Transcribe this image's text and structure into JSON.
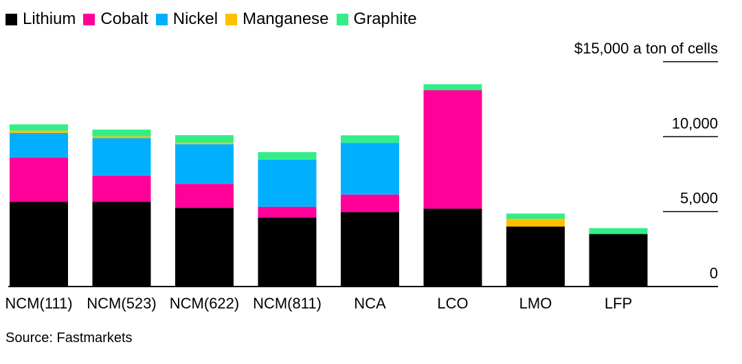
{
  "chart_data": {
    "type": "bar",
    "stacked": true,
    "title": "",
    "ylabel": "$15,000 a ton of cells",
    "xlabel": "",
    "ylim": [
      0,
      15000
    ],
    "yticks": [
      {
        "value": 0,
        "label": "0"
      },
      {
        "value": 5000,
        "label": "5,000"
      },
      {
        "value": 10000,
        "label": "10,000"
      },
      {
        "value": 15000,
        "label": "$15,000 a ton of cells"
      }
    ],
    "categories": [
      "NCM(111)",
      "NCM(523)",
      "NCM(622)",
      "NCM(811)",
      "NCA",
      "LCO",
      "LMO",
      "LFP"
    ],
    "series": [
      {
        "name": "Lithium",
        "color": "#000000",
        "values": [
          5650,
          5650,
          5250,
          4600,
          4970,
          5200,
          4000,
          3500
        ]
      },
      {
        "name": "Cobalt",
        "color": "#ff0099",
        "values": [
          2950,
          1750,
          1600,
          720,
          1170,
          7900,
          0,
          0
        ]
      },
      {
        "name": "Nickel",
        "color": "#00b0ff",
        "values": [
          1650,
          2500,
          2650,
          3150,
          3450,
          0,
          0,
          0
        ]
      },
      {
        "name": "Manganese",
        "color": "#ffc000",
        "values": [
          150,
          120,
          100,
          0,
          0,
          0,
          520,
          0
        ]
      },
      {
        "name": "Graphite",
        "color": "#33ee88",
        "values": [
          420,
          450,
          500,
          500,
          500,
          400,
          350,
          400
        ]
      }
    ],
    "grid": false,
    "legend_position": "top-left"
  },
  "source": "Source: Fastmarkets"
}
